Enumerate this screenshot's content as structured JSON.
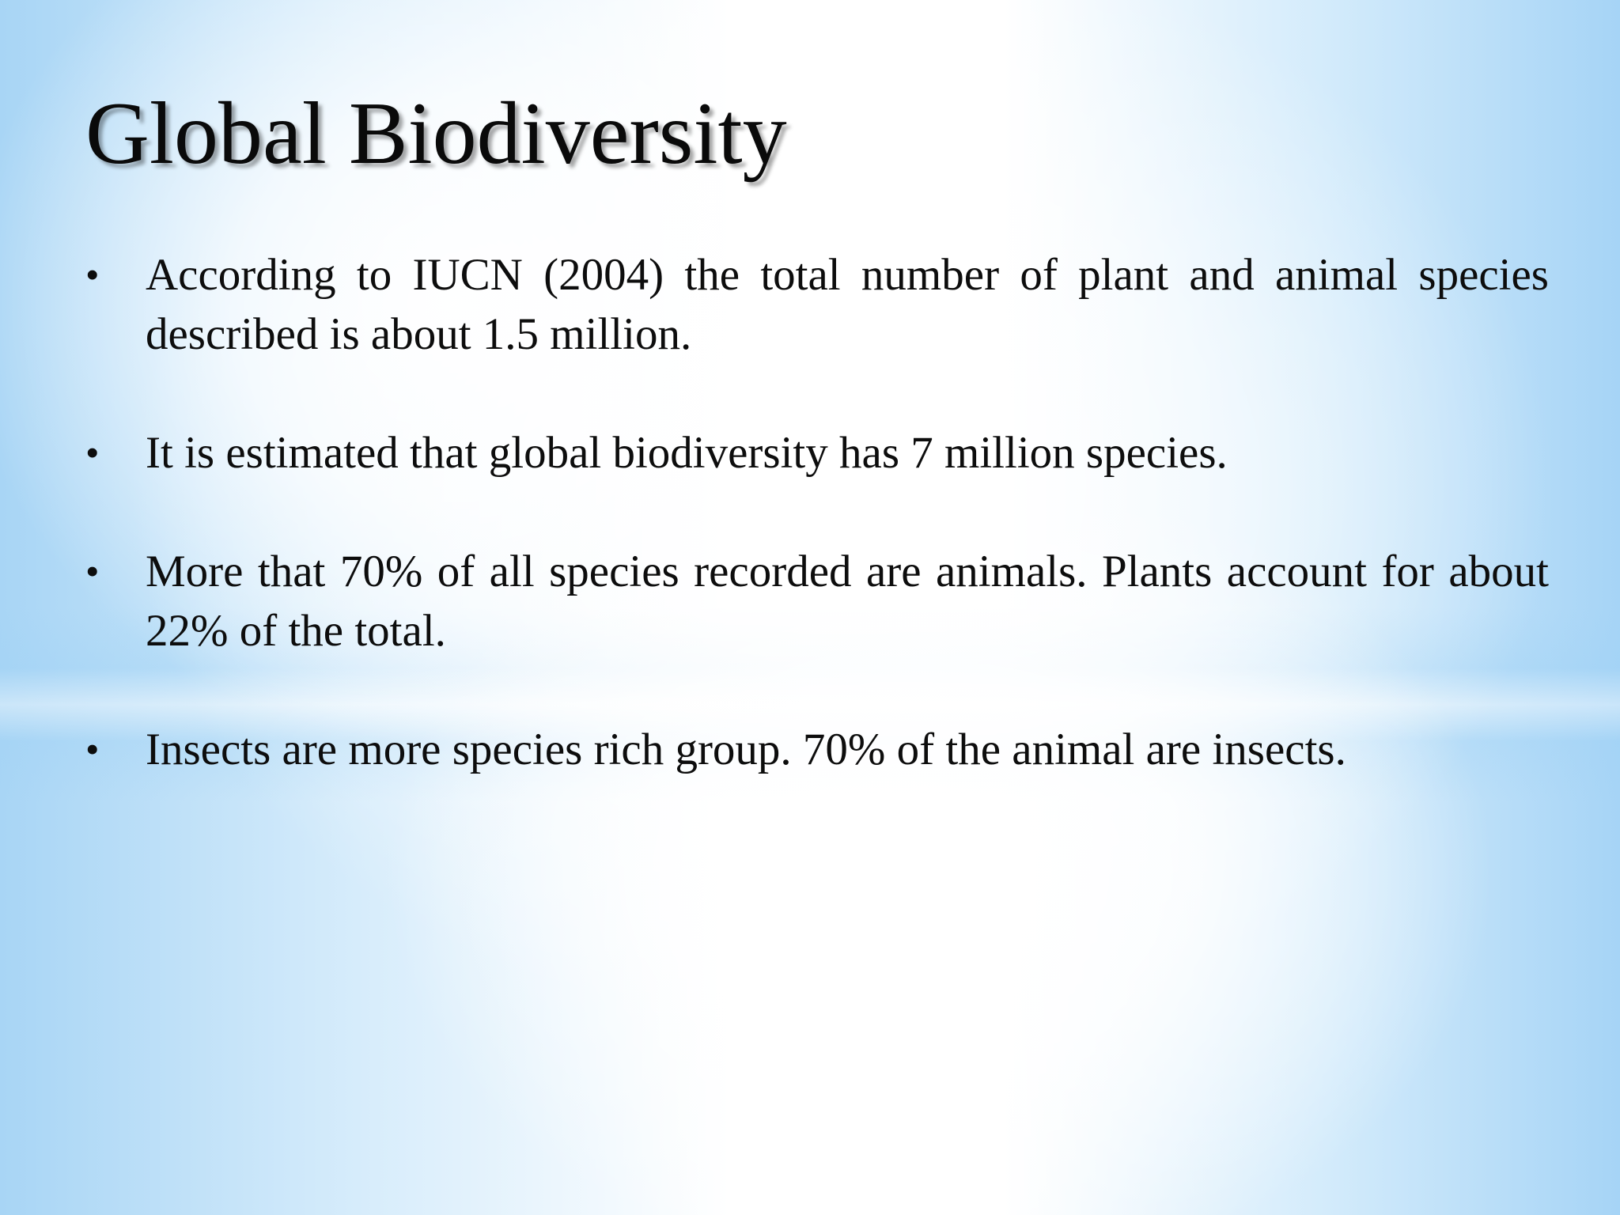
{
  "slide": {
    "title": "Global Biodiversity",
    "bullet_symbol": "•",
    "bullets": [
      "According to IUCN (2004) the total number of plant and animal species described is about 1.5 million.",
      "It is estimated that global biodiversity has 7 million species.",
      "More that 70% of all species recorded are animals. Plants account for about 22% of the total.",
      "Insects are more species rich group. 70% of the animal are insects."
    ]
  },
  "colors": {
    "background_edge": "#a8d5f5",
    "background_center": "#ffffff",
    "text": "#0d0d0d"
  }
}
